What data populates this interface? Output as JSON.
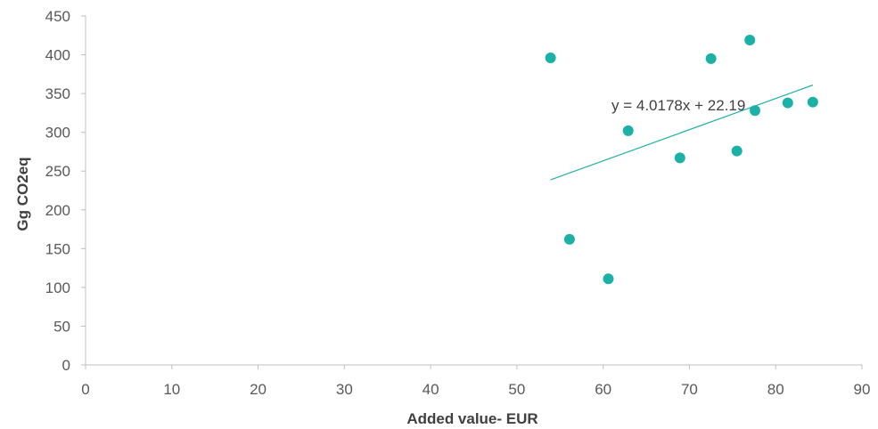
{
  "chart_data": {
    "type": "scatter",
    "xlabel": "Added value- EUR",
    "ylabel": "Gg CO2eq",
    "xlim": [
      0,
      90
    ],
    "ylim": [
      0,
      450
    ],
    "xticks": [
      "0",
      "10",
      "20",
      "30",
      "40",
      "50",
      "60",
      "70",
      "80",
      "90"
    ],
    "yticks": [
      "0",
      "50",
      "100",
      "150",
      "200",
      "250",
      "300",
      "350",
      "400",
      "450"
    ],
    "grid": false,
    "legend": "none",
    "marker_color": "#1bb1a6",
    "trendline_color": "#1bb1a6",
    "points": [
      {
        "x": 53.9,
        "y": 396
      },
      {
        "x": 56.1,
        "y": 162
      },
      {
        "x": 60.6,
        "y": 111
      },
      {
        "x": 62.9,
        "y": 302
      },
      {
        "x": 68.9,
        "y": 267
      },
      {
        "x": 72.5,
        "y": 395
      },
      {
        "x": 75.5,
        "y": 276
      },
      {
        "x": 77.0,
        "y": 419
      },
      {
        "x": 77.6,
        "y": 328
      },
      {
        "x": 81.4,
        "y": 338
      },
      {
        "x": 84.3,
        "y": 339
      }
    ],
    "trendline": {
      "equation": "y = 4.0178x + 22.19",
      "slope": 4.0178,
      "intercept": 22.19,
      "x_start": 53.9,
      "x_end": 84.3
    }
  }
}
